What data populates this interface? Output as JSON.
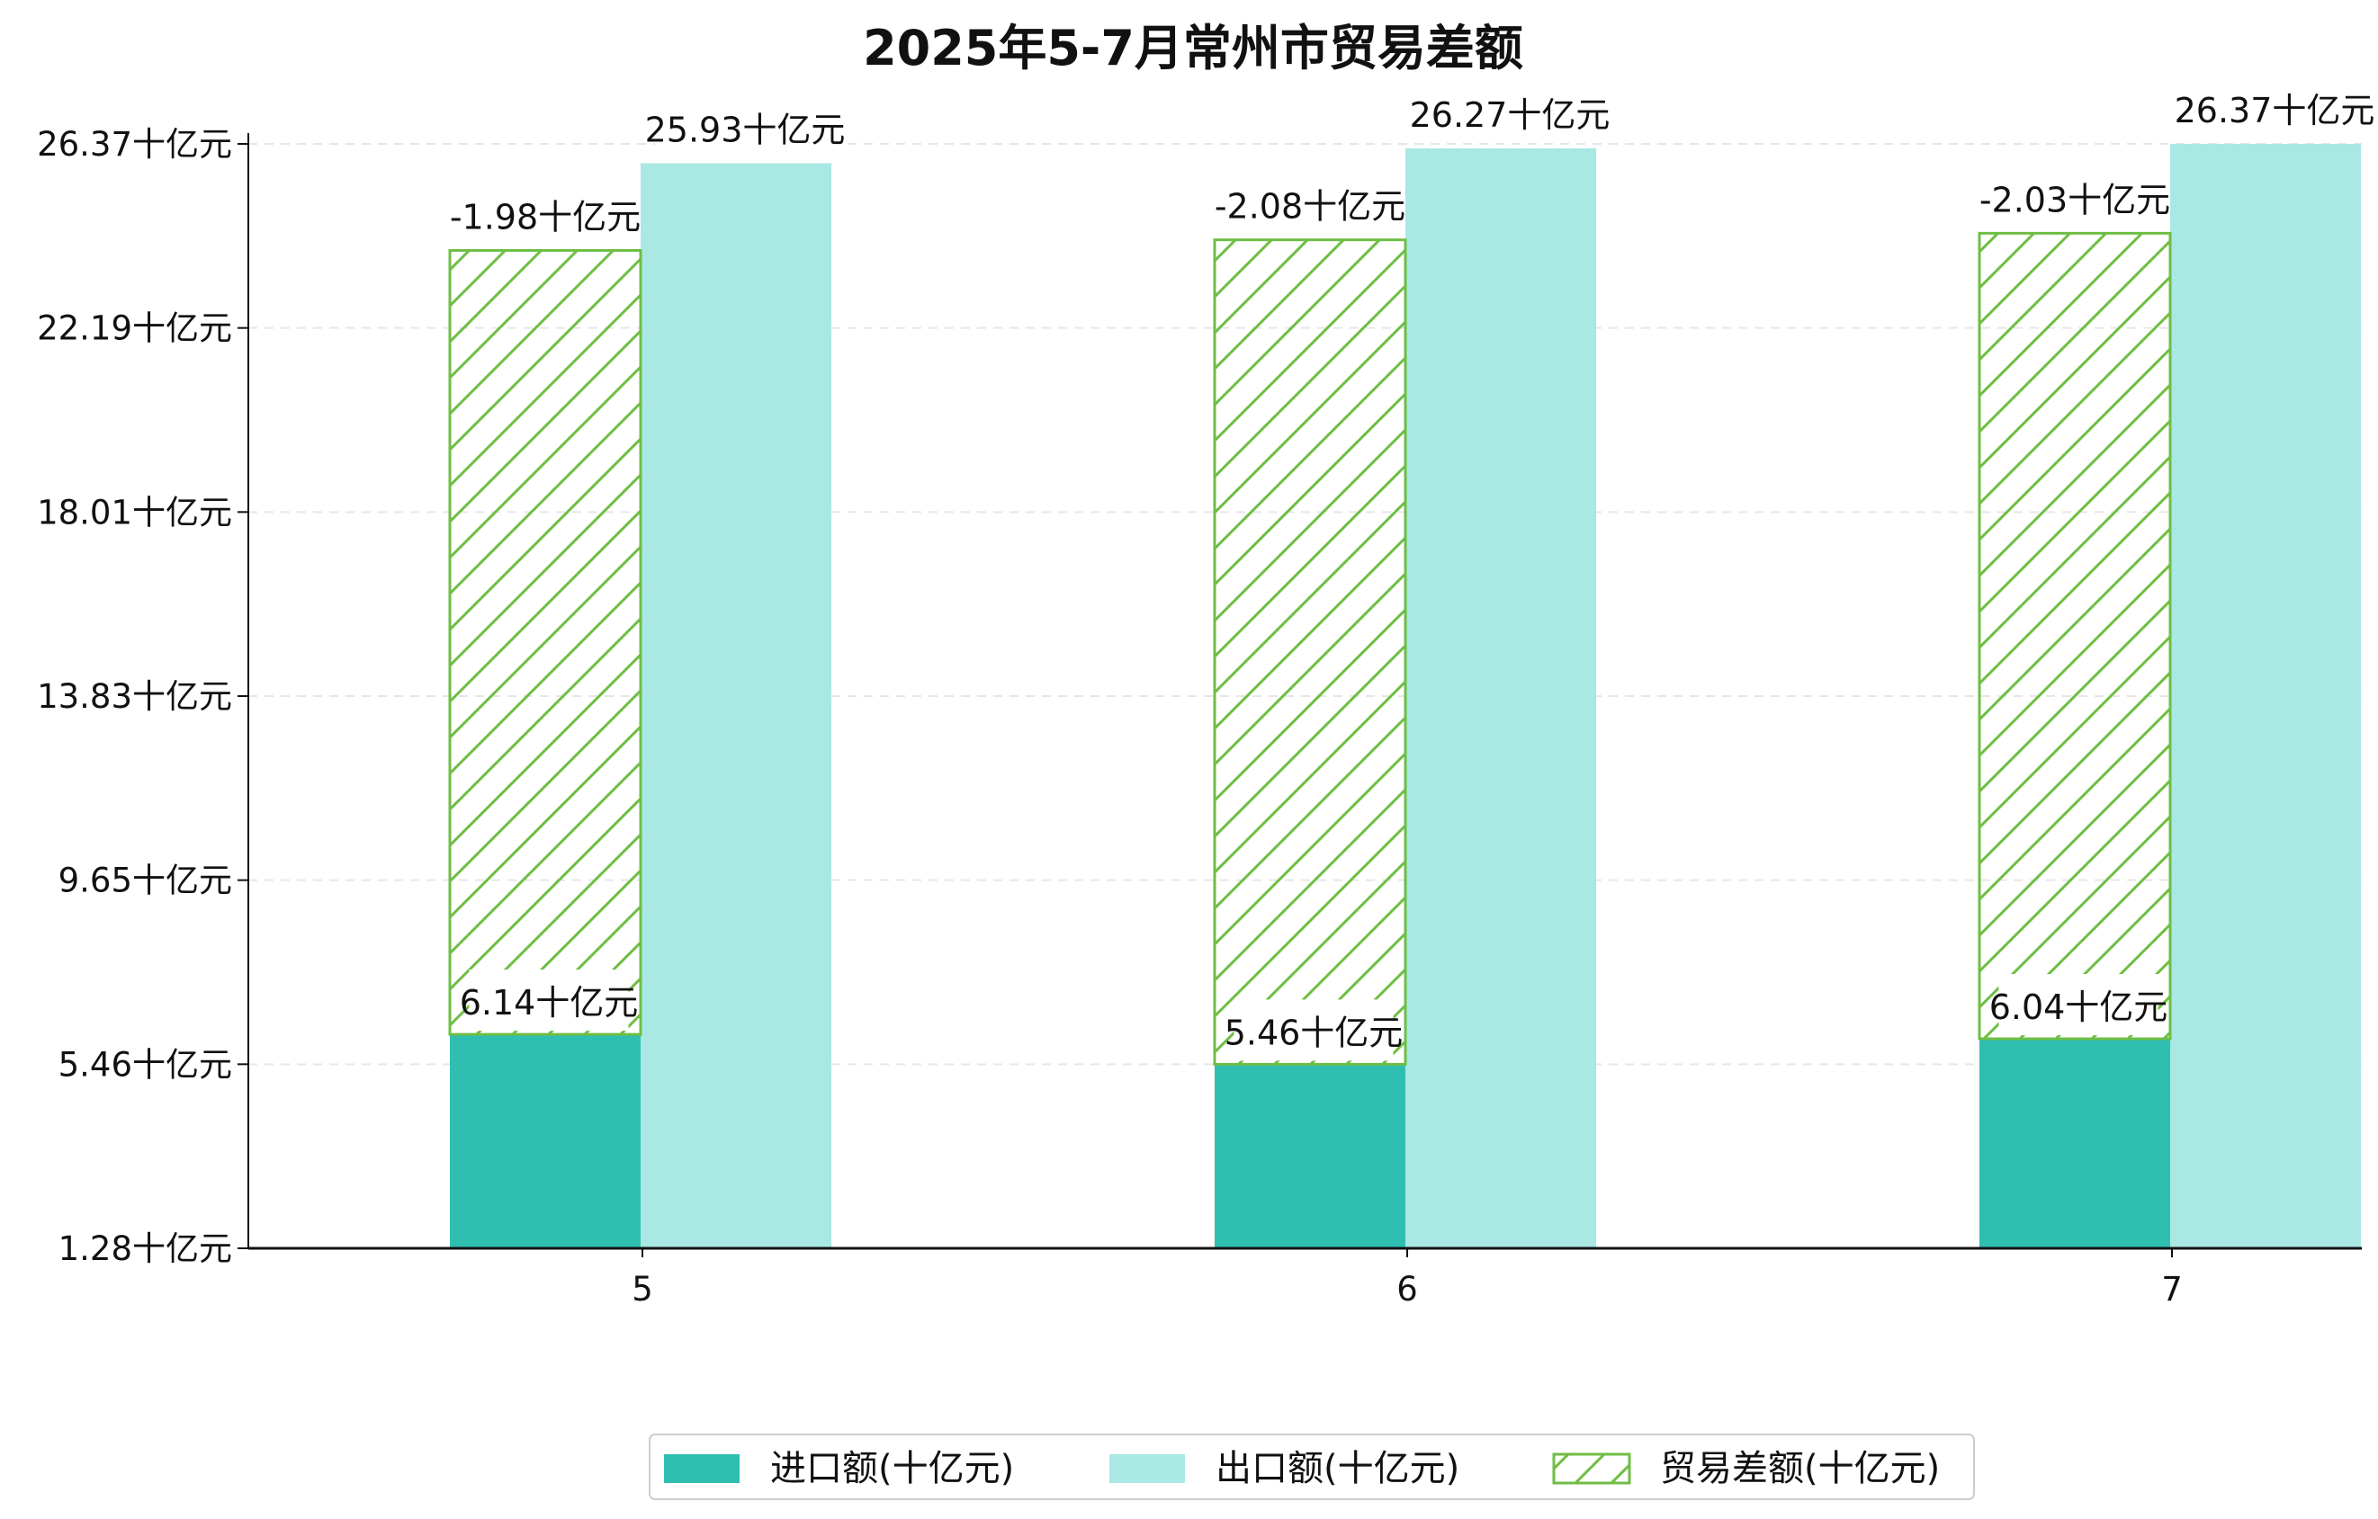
{
  "chart_data": {
    "type": "bar",
    "title": "2025年5-7月常州市贸易差额",
    "xlabel": "",
    "ylabel": "",
    "categories": [
      "5",
      "6",
      "7"
    ],
    "unit": "十亿元",
    "ylim": [
      1.28,
      26.37
    ],
    "yticks": [
      "1.28十亿元",
      "5.46十亿元",
      "9.65十亿元",
      "13.83十亿元",
      "18.01十亿元",
      "22.19十亿元",
      "26.37十亿元"
    ],
    "series": [
      {
        "name": "进口额(十亿元)",
        "values": [
          6.14,
          5.46,
          6.04
        ],
        "labels": [
          "6.14十亿元",
          "5.46十亿元",
          "6.04十亿元"
        ],
        "color": "#2fbfb1"
      },
      {
        "name": "出口额(十亿元)",
        "values": [
          25.93,
          26.27,
          26.37
        ],
        "labels": [
          "25.93十亿元",
          "26.27十亿元",
          "26.37十亿元"
        ],
        "color": "#a9e8e3"
      },
      {
        "name": "贸易差额(十亿元)",
        "values": [
          -1.98,
          -2.08,
          -2.03
        ],
        "labels": [
          "-1.98十亿元",
          "-2.08十亿元",
          "-2.03十亿元"
        ],
        "color": "#6fbe44"
      }
    ],
    "grid": true,
    "legend": "bottom-center"
  }
}
